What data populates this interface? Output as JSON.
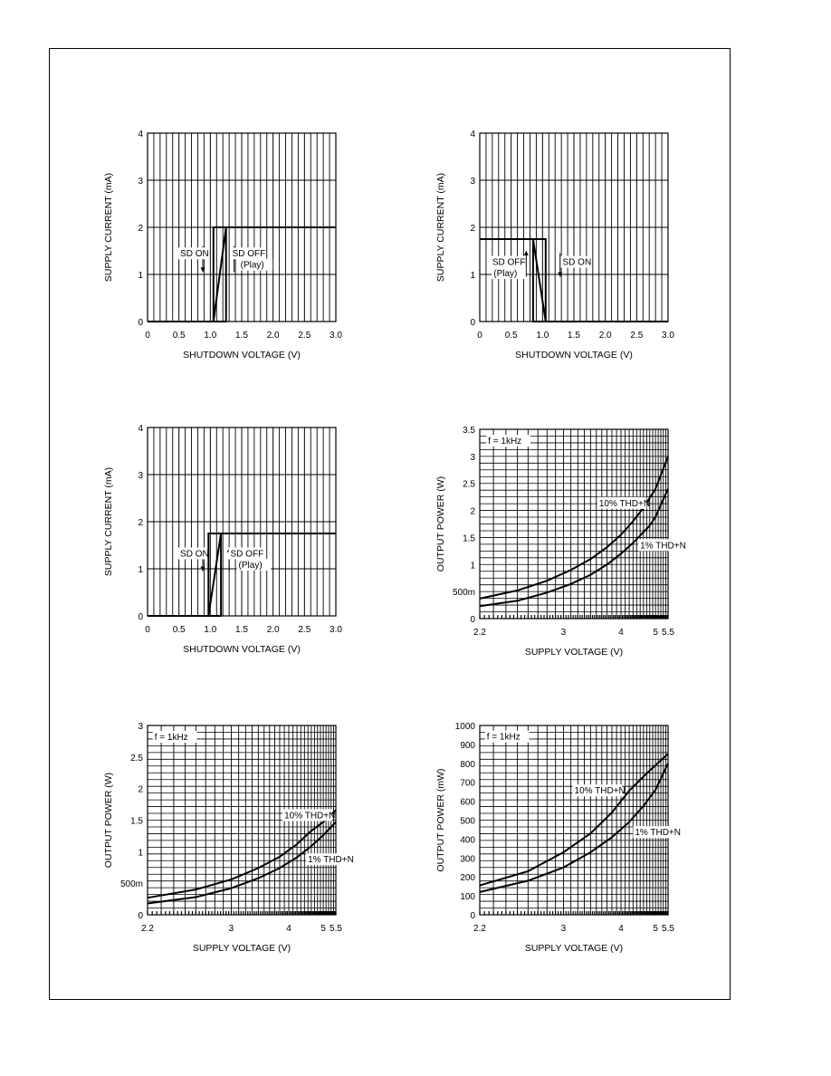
{
  "colors": {
    "ink": "#000000",
    "paper": "#ffffff"
  },
  "chart_data": [
    {
      "type": "line",
      "xlabel": "SHUTDOWN VOLTAGE (V)",
      "ylabel": "SUPPLY CURRENT (mA)",
      "xlim": [
        0,
        3.0
      ],
      "ylim": [
        0,
        4
      ],
      "x_ticks": [
        "0",
        "0.5",
        "1.0",
        "1.5",
        "2.0",
        "2.5",
        "3.0"
      ],
      "y_ticks": [
        "0",
        "1",
        "2",
        "3",
        "4"
      ],
      "grid": true,
      "series": [
        {
          "values": [
            [
              0,
              0
            ],
            [
              1.05,
              0
            ],
            [
              1.05,
              2
            ],
            [
              1.25,
              2
            ],
            [
              1.25,
              0
            ],
            [
              1.05,
              0
            ],
            [
              1.25,
              2
            ],
            [
              3.0,
              2
            ]
          ]
        }
      ],
      "annotations": [
        {
          "text": "SD ON",
          "x": 0.52,
          "y": 1.38
        },
        {
          "text": "SD OFF",
          "x": 1.35,
          "y": 1.38
        },
        {
          "text": "(Play)",
          "x": 1.48,
          "y": 1.14
        }
      ],
      "arrows": [
        {
          "x": 0.88,
          "from": 1.6,
          "to": 1.05
        },
        {
          "x": 1.38,
          "from": 1.05,
          "to": 1.6
        }
      ]
    },
    {
      "type": "line",
      "xlabel": "SHUTDOWN VOLTAGE (V)",
      "ylabel": "SUPPLY CURRENT (mA)",
      "xlim": [
        0,
        3.0
      ],
      "ylim": [
        0,
        4
      ],
      "x_ticks": [
        "0",
        "0.5",
        "1.0",
        "1.5",
        "2.0",
        "2.5",
        "3.0"
      ],
      "y_ticks": [
        "0",
        "1",
        "2",
        "3",
        "4"
      ],
      "grid": true,
      "series": [
        {
          "values": [
            [
              0,
              1.75
            ],
            [
              0.85,
              1.75
            ],
            [
              0.85,
              0
            ],
            [
              1.05,
              0
            ],
            [
              1.05,
              1.75
            ],
            [
              0.85,
              1.75
            ],
            [
              1.05,
              0
            ],
            [
              3.0,
              0
            ]
          ]
        }
      ],
      "annotations": [
        {
          "text": "SD OFF",
          "x": 0.2,
          "y": 1.2
        },
        {
          "text": "(Play)",
          "x": 0.22,
          "y": 0.96
        },
        {
          "text": "SD ON",
          "x": 1.32,
          "y": 1.2
        }
      ],
      "arrows": [
        {
          "x": 0.74,
          "from": 0.95,
          "to": 1.5
        },
        {
          "x": 1.28,
          "from": 1.45,
          "to": 0.95
        }
      ]
    },
    {
      "type": "line",
      "xlabel": "SHUTDOWN VOLTAGE (V)",
      "ylabel": "SUPPLY CURRENT (mA)",
      "xlim": [
        0,
        3.0
      ],
      "ylim": [
        0,
        4
      ],
      "x_ticks": [
        "0",
        "0.5",
        "1.0",
        "1.5",
        "2.0",
        "2.5",
        "3.0"
      ],
      "y_ticks": [
        "0",
        "1",
        "2",
        "3",
        "4"
      ],
      "grid": true,
      "series": [
        {
          "values": [
            [
              0,
              0
            ],
            [
              0.97,
              0
            ],
            [
              0.97,
              1.75
            ],
            [
              1.17,
              1.75
            ],
            [
              1.17,
              0
            ],
            [
              0.97,
              0
            ],
            [
              1.17,
              1.75
            ],
            [
              3.0,
              1.75
            ]
          ]
        }
      ],
      "annotations": [
        {
          "text": "SD ON",
          "x": 0.52,
          "y": 1.26
        },
        {
          "text": "SD OFF",
          "x": 1.32,
          "y": 1.26
        },
        {
          "text": "(Play)",
          "x": 1.45,
          "y": 1.02
        }
      ],
      "arrows": [
        {
          "x": 0.88,
          "from": 1.45,
          "to": 0.95
        },
        {
          "x": 1.3,
          "from": 0.95,
          "to": 1.45
        }
      ]
    },
    {
      "type": "line",
      "xscale": "reciprocal",
      "xlabel": "SUPPLY VOLTAGE (V)",
      "ylabel": "OUTPUT POWER (W)",
      "xlim": [
        2.2,
        5.5
      ],
      "ylim": [
        0,
        3.5
      ],
      "x_ticks": [
        "2.2",
        "3",
        "4",
        "5",
        "5.5"
      ],
      "y_ticks": [
        "0",
        "500m",
        "1",
        "1.5",
        "2",
        "2.5",
        "3",
        "3.5"
      ],
      "grid": true,
      "series": [
        {
          "name": "10% THD+N",
          "values": [
            [
              2.2,
              0.37
            ],
            [
              2.5,
              0.52
            ],
            [
              2.8,
              0.7
            ],
            [
              3.1,
              0.9
            ],
            [
              3.4,
              1.1
            ],
            [
              3.7,
              1.32
            ],
            [
              4.0,
              1.55
            ],
            [
              4.3,
              1.8
            ],
            [
              4.6,
              2.05
            ],
            [
              5.0,
              2.4
            ],
            [
              5.5,
              3.0
            ]
          ]
        },
        {
          "name": "1% THD+N",
          "values": [
            [
              2.2,
              0.23
            ],
            [
              2.5,
              0.33
            ],
            [
              2.8,
              0.48
            ],
            [
              3.1,
              0.64
            ],
            [
              3.4,
              0.81
            ],
            [
              3.7,
              1.0
            ],
            [
              4.0,
              1.2
            ],
            [
              4.3,
              1.4
            ],
            [
              4.6,
              1.6
            ],
            [
              4.8,
              1.72
            ],
            [
              5.0,
              1.88
            ],
            [
              5.5,
              2.4
            ]
          ]
        }
      ],
      "annotations": [
        {
          "text": "f = 1kHz",
          "x": 2.26,
          "y": 3.23
        },
        {
          "text": "10% THD+N",
          "x": 3.55,
          "y": 2.08
        },
        {
          "text": "1% THD+N",
          "x": 4.5,
          "y": 1.3
        }
      ]
    },
    {
      "type": "line",
      "xscale": "reciprocal",
      "xlabel": "SUPPLY VOLTAGE (V)",
      "ylabel": "OUTPUT POWER (W)",
      "xlim": [
        2.2,
        5.5
      ],
      "ylim": [
        0,
        3
      ],
      "x_ticks": [
        "2.2",
        "3",
        "4",
        "5",
        "5.5"
      ],
      "y_ticks": [
        "0",
        "500m",
        "1",
        "1.5",
        "2",
        "2.5",
        "3"
      ],
      "grid": true,
      "series": [
        {
          "name": "10% THD+N",
          "values": [
            [
              2.2,
              0.27
            ],
            [
              2.6,
              0.4
            ],
            [
              3.0,
              0.56
            ],
            [
              3.4,
              0.74
            ],
            [
              3.8,
              0.92
            ],
            [
              4.2,
              1.12
            ],
            [
              4.6,
              1.33
            ],
            [
              5.0,
              1.47
            ],
            [
              5.5,
              1.66
            ]
          ]
        },
        {
          "name": "1% THD+N",
          "values": [
            [
              2.2,
              0.18
            ],
            [
              2.6,
              0.28
            ],
            [
              3.0,
              0.42
            ],
            [
              3.4,
              0.58
            ],
            [
              3.8,
              0.74
            ],
            [
              4.2,
              0.91
            ],
            [
              4.6,
              1.09
            ],
            [
              5.0,
              1.26
            ],
            [
              5.5,
              1.47
            ]
          ]
        }
      ],
      "annotations": [
        {
          "text": "f = 1kHz",
          "x": 2.25,
          "y": 2.77
        },
        {
          "text": "10% THD+N",
          "x": 3.9,
          "y": 1.53
        },
        {
          "text": "1% THD+N",
          "x": 4.5,
          "y": 0.83
        }
      ]
    },
    {
      "type": "line",
      "xscale": "reciprocal",
      "xlabel": "SUPPLY VOLTAGE (V)",
      "ylabel": "OUTPUT POWER (mW)",
      "xlim": [
        2.2,
        5.5
      ],
      "ylim": [
        0,
        1000
      ],
      "x_ticks": [
        "2.2",
        "3",
        "4",
        "5",
        "5.5"
      ],
      "y_ticks": [
        "0",
        "100",
        "200",
        "300",
        "400",
        "500",
        "600",
        "700",
        "800",
        "900",
        "1000"
      ],
      "grid": true,
      "series": [
        {
          "name": "10% THD+N",
          "values": [
            [
              2.2,
              155
            ],
            [
              2.6,
              230
            ],
            [
              3.0,
              330
            ],
            [
              3.4,
              430
            ],
            [
              3.8,
              540
            ],
            [
              4.2,
              655
            ],
            [
              4.6,
              730
            ],
            [
              5.0,
              790
            ],
            [
              5.5,
              850
            ]
          ]
        },
        {
          "name": "1% THD+N",
          "values": [
            [
              2.2,
              120
            ],
            [
              2.6,
              180
            ],
            [
              3.0,
              250
            ],
            [
              3.4,
              330
            ],
            [
              3.8,
              410
            ],
            [
              4.2,
              490
            ],
            [
              4.6,
              575
            ],
            [
              5.0,
              660
            ],
            [
              5.5,
              800
            ]
          ]
        }
      ],
      "annotations": [
        {
          "text": "f = 1kHz",
          "x": 2.25,
          "y": 925
        },
        {
          "text": "10% THD+N",
          "x": 3.15,
          "y": 640
        },
        {
          "text": "1% THD+N",
          "x": 4.35,
          "y": 420
        }
      ]
    }
  ]
}
